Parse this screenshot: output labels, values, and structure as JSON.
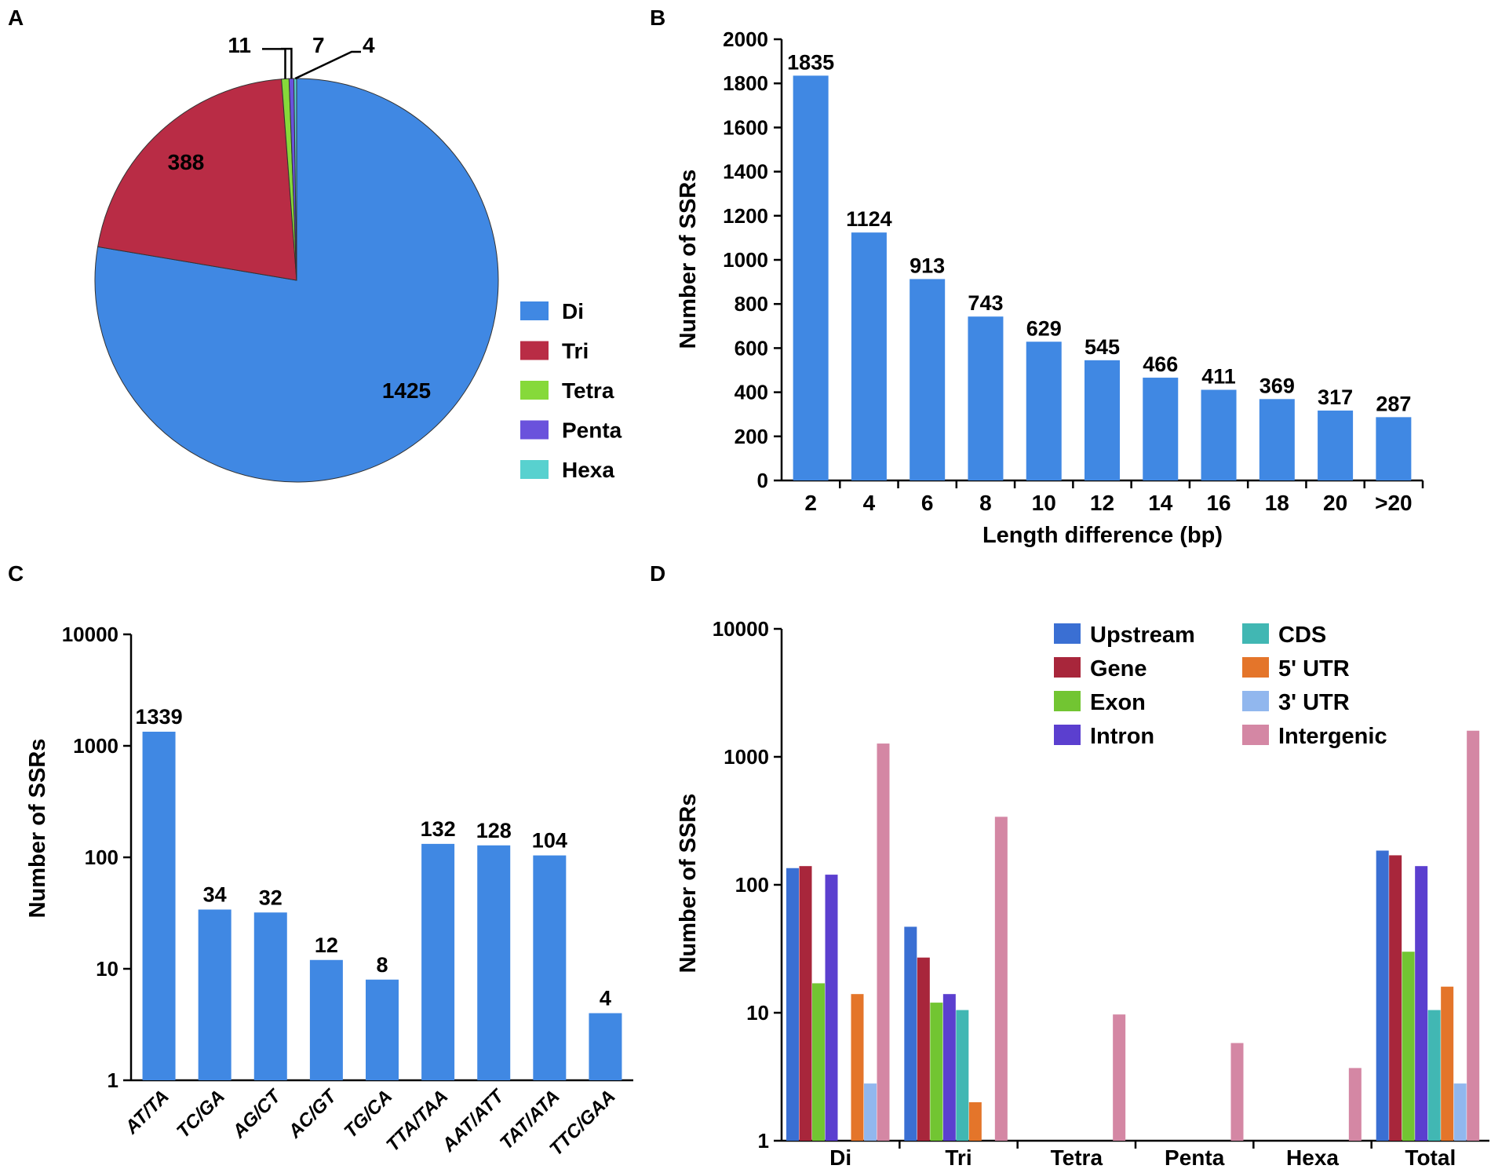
{
  "panels": {
    "a": "A",
    "b": "B",
    "c": "C",
    "d": "D"
  },
  "colors": {
    "bar_blue": "#4088e3",
    "pie": [
      "#4088e3",
      "#b92c45",
      "#86d93a",
      "#6a52dc",
      "#58d1cf"
    ],
    "series": [
      "#3a6fd3",
      "#a8263b",
      "#72c532",
      "#5b3fcf",
      "#41b7b3",
      "#e4752a",
      "#91b7ee",
      "#d487a4"
    ]
  },
  "chart_data": [
    {
      "type": "pie",
      "panel": "A",
      "categories": [
        "Di",
        "Tri",
        "Tetra",
        "Penta",
        "Hexa"
      ],
      "values": [
        1425,
        388,
        11,
        7,
        4
      ],
      "data_labels": [
        "1425",
        "388",
        "11",
        "7",
        "4"
      ],
      "legend": [
        "Di",
        "Tri",
        "Tetra",
        "Penta",
        "Hexa"
      ],
      "legend_position": "right"
    },
    {
      "type": "bar",
      "panel": "B",
      "categories": [
        "2",
        "4",
        "6",
        "8",
        "10",
        "12",
        "14",
        "16",
        "18",
        "20",
        ">20"
      ],
      "values": [
        1835,
        1124,
        913,
        743,
        629,
        545,
        466,
        411,
        369,
        317,
        287
      ],
      "data_labels": [
        "1835",
        "1124",
        "913",
        "743",
        "629",
        "545",
        "466",
        "411",
        "369",
        "317",
        "287"
      ],
      "xlabel": "Length difference (bp)",
      "ylabel": "Number of SSRs",
      "ylim": [
        0,
        2000
      ],
      "yticks": [
        "0",
        "200",
        "400",
        "600",
        "800",
        "1000",
        "1200",
        "1400",
        "1600",
        "1800",
        "2000"
      ]
    },
    {
      "type": "bar",
      "panel": "C",
      "scale": "log",
      "categories": [
        "AT/TA",
        "TC/GA",
        "AG/CT",
        "AC/GT",
        "TG/CA",
        "TTA/TAA",
        "AAT/ATT",
        "TAT/ATA",
        "TTC/GAA"
      ],
      "values": [
        1339,
        34,
        32,
        12,
        8,
        132,
        128,
        104,
        4
      ],
      "data_labels": [
        "1339",
        "34",
        "32",
        "12",
        "8",
        "132",
        "128",
        "104",
        "4"
      ],
      "ylabel": "Number of SSRs",
      "ylim": [
        1,
        10000
      ],
      "yticks": [
        "1",
        "10",
        "100",
        "1000",
        "10000"
      ]
    },
    {
      "type": "bar",
      "panel": "D",
      "scale": "log",
      "categories": [
        "Di",
        "Tri",
        "Tetra",
        "Penta",
        "Hexa",
        "Total"
      ],
      "series": [
        {
          "name": "Upstream",
          "values": [
            135,
            47,
            null,
            null,
            null,
            185
          ]
        },
        {
          "name": "Gene",
          "values": [
            140,
            27,
            null,
            null,
            null,
            170
          ]
        },
        {
          "name": "Exon",
          "values": [
            17,
            12,
            null,
            null,
            null,
            30
          ]
        },
        {
          "name": "Intron",
          "values": [
            120,
            14,
            null,
            null,
            null,
            140
          ]
        },
        {
          "name": "CDS",
          "values": [
            null,
            10.5,
            null,
            null,
            null,
            10.5
          ]
        },
        {
          "name": "5' UTR",
          "values": [
            14,
            2,
            null,
            null,
            null,
            16
          ]
        },
        {
          "name": "3' UTR",
          "values": [
            2.8,
            null,
            null,
            null,
            null,
            2.8
          ]
        },
        {
          "name": "Intergenic",
          "values": [
            1270,
            340,
            9.7,
            5.8,
            3.7,
            1600
          ]
        }
      ],
      "legend": [
        "Upstream",
        "Gene",
        "Exon",
        "Intron",
        "CDS",
        "5' UTR",
        "3' UTR",
        "Intergenic"
      ],
      "legend_position": "top-right",
      "ylabel": "Number of SSRs",
      "ylim": [
        1,
        10000
      ],
      "yticks": [
        "1",
        "10",
        "100",
        "1000",
        "10000"
      ]
    }
  ]
}
